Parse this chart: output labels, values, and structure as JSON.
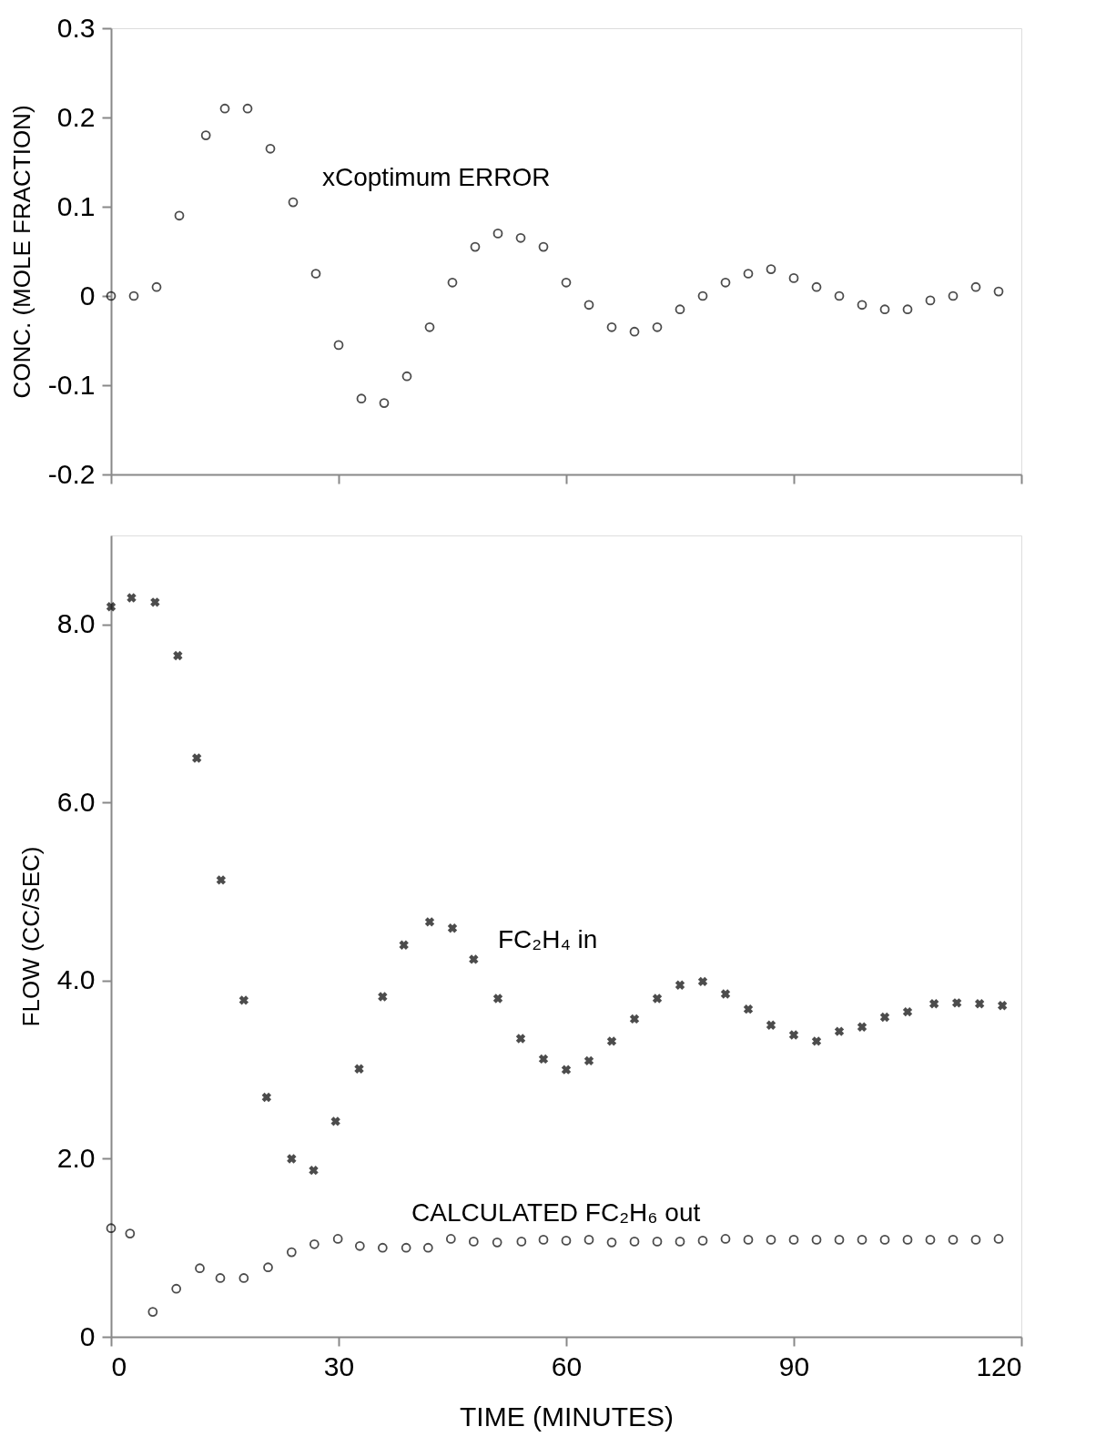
{
  "chart_data": [
    {
      "type": "scatter",
      "ylabel": "CONC. (MOLE FRACTION)",
      "xlim": [
        0,
        120
      ],
      "xticks": [
        0,
        30,
        60,
        90,
        120
      ],
      "ylim": [
        -0.2,
        0.3
      ],
      "yticks": [
        -0.2,
        -0.1,
        0,
        0.1,
        0.2,
        0.3
      ],
      "tick_labels": "y",
      "grid": false,
      "legend": false,
      "series": [
        {
          "color": "#000000",
          "marker": "circle",
          "x": [
            0,
            3,
            6,
            9,
            12.5,
            15,
            18,
            21,
            24,
            27,
            30,
            33,
            36,
            39,
            42,
            45,
            48,
            51,
            54,
            57,
            60,
            63,
            66,
            69,
            72,
            75,
            78,
            81,
            84,
            87,
            90,
            93,
            96,
            99,
            102,
            105,
            108,
            111,
            114,
            117
          ],
          "values": [
            0,
            0,
            0.01,
            0.09,
            0.18,
            0.21,
            0.21,
            0.165,
            0.105,
            0.025,
            -0.055,
            -0.115,
            -0.12,
            -0.09,
            -0.035,
            0.015,
            0.055,
            0.07,
            0.065,
            0.055,
            0.015,
            -0.01,
            -0.035,
            -0.04,
            -0.035,
            -0.015,
            0,
            0.015,
            0.025,
            0.03,
            0.02,
            0.01,
            0,
            -0.01,
            -0.015,
            -0.015,
            -0.005,
            0,
            0.01,
            0.005
          ]
        }
      ],
      "annotations": [
        "xCoptimum ERROR"
      ]
    },
    {
      "type": "scatter",
      "xlabel": "TIME (MINUTES)",
      "ylabel": "FLOW (CC/SEC)",
      "xlim": [
        0,
        120
      ],
      "xticks": [
        0,
        30,
        60,
        90,
        120
      ],
      "ylim": [
        0,
        9
      ],
      "yticks": [
        0,
        {
          "value": 2,
          "label": "2.0"
        },
        {
          "value": 4,
          "label": "4.0"
        },
        {
          "value": 6,
          "label": "6.0"
        },
        {
          "value": 8,
          "label": "8.0"
        }
      ],
      "grid": false,
      "legend": false,
      "series": [
        {
          "color": "#000000",
          "marker": "cross",
          "x": [
            0,
            2.7,
            5.8,
            8.8,
            11.3,
            14.5,
            17.5,
            20.5,
            23.8,
            26.7,
            29.6,
            32.7,
            35.8,
            38.6,
            42,
            45,
            47.8,
            51,
            54,
            57,
            60,
            63,
            66,
            69,
            72,
            75,
            78,
            81,
            84,
            87,
            90,
            93,
            96,
            99,
            102,
            105,
            108.5,
            111.5,
            114.5,
            117.5
          ],
          "values": [
            8.2,
            8.3,
            8.25,
            7.65,
            6.5,
            5.13,
            3.78,
            2.69,
            2.0,
            1.87,
            2.42,
            3.01,
            3.82,
            4.4,
            4.66,
            4.59,
            4.24,
            3.8,
            3.35,
            3.12,
            3.0,
            3.1,
            3.32,
            3.57,
            3.8,
            3.95,
            3.99,
            3.85,
            3.68,
            3.5,
            3.39,
            3.32,
            3.43,
            3.48,
            3.59,
            3.65,
            3.74,
            3.75,
            3.74,
            3.72
          ]
        },
        {
          "color": "#000000",
          "marker": "circle",
          "x": [
            0,
            2.5,
            5.5,
            8.6,
            11.7,
            14.4,
            17.5,
            20.7,
            23.8,
            26.8,
            29.9,
            32.8,
            35.8,
            38.9,
            41.8,
            44.8,
            47.8,
            50.9,
            54.1,
            57,
            60,
            63,
            66,
            69,
            72,
            75,
            78,
            81,
            84,
            87,
            90,
            93,
            96,
            99,
            102,
            105,
            108,
            111,
            114,
            117
          ],
          "values": [
            1.22,
            1.16,
            0.28,
            0.54,
            0.77,
            0.66,
            0.66,
            0.78,
            0.95,
            1.04,
            1.1,
            1.02,
            1.0,
            1.0,
            1.0,
            1.1,
            1.07,
            1.06,
            1.07,
            1.09,
            1.08,
            1.09,
            1.06,
            1.07,
            1.07,
            1.07,
            1.08,
            1.1,
            1.09,
            1.09,
            1.09,
            1.09,
            1.09,
            1.09,
            1.09,
            1.09,
            1.09,
            1.09,
            1.09,
            1.1
          ]
        }
      ],
      "annotations": [
        "FC₂H₄ in",
        "CALCULATED  FC₂H₆ out"
      ]
    }
  ]
}
